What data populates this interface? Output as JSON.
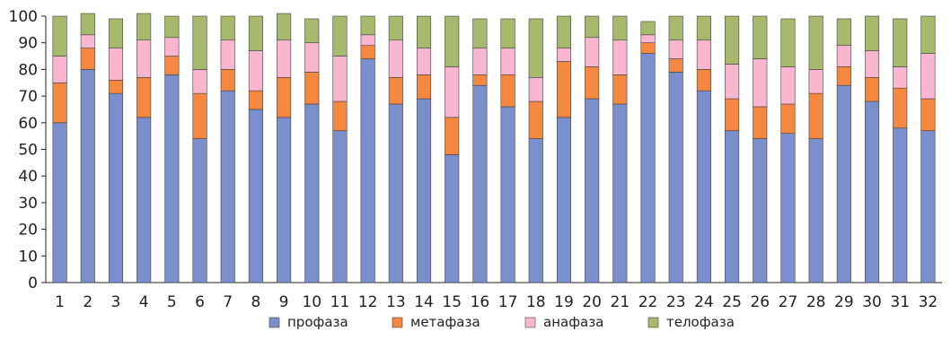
{
  "chart_data": {
    "type": "bar",
    "stacked": true,
    "title": "",
    "xlabel": "",
    "ylabel": "",
    "ylim": [
      0,
      100
    ],
    "yticks": [
      0,
      10,
      20,
      30,
      40,
      50,
      60,
      70,
      80,
      90,
      100
    ],
    "grid": false,
    "legend_position": "bottom",
    "categories": [
      "1",
      "2",
      "3",
      "4",
      "5",
      "6",
      "7",
      "8",
      "9",
      "10",
      "11",
      "12",
      "13",
      "14",
      "15",
      "16",
      "17",
      "18",
      "19",
      "20",
      "21",
      "22",
      "23",
      "24",
      "25",
      "26",
      "27",
      "28",
      "29",
      "30",
      "31",
      "32"
    ],
    "series": [
      {
        "name": "профаза",
        "color": "#7b8fcc",
        "values": [
          60,
          80,
          71,
          62,
          78,
          54,
          72,
          65,
          62,
          67,
          57,
          84,
          67,
          69,
          48,
          74,
          66,
          54,
          62,
          69,
          67,
          86,
          79,
          72,
          57,
          54,
          56,
          54,
          74,
          68,
          58,
          57
        ]
      },
      {
        "name": "метафаза",
        "color": "#f58840",
        "values": [
          15,
          8,
          5,
          15,
          7,
          17,
          8,
          7,
          15,
          12,
          11,
          5,
          10,
          9,
          14,
          4,
          12,
          14,
          21,
          12,
          11,
          4,
          5,
          8,
          12,
          12,
          11,
          17,
          7,
          9,
          15,
          12
        ]
      },
      {
        "name": "анафаза",
        "color": "#f9b6d0",
        "values": [
          10,
          5,
          12,
          14,
          7,
          9,
          11,
          15,
          14,
          11,
          17,
          4,
          14,
          10,
          19,
          10,
          10,
          9,
          5,
          11,
          13,
          3,
          7,
          11,
          13,
          18,
          14,
          9,
          8,
          10,
          8,
          17
        ]
      },
      {
        "name": "телофаза",
        "color": "#a6b96c",
        "values": [
          15,
          8,
          11,
          10,
          8,
          20,
          9,
          13,
          10,
          9,
          15,
          7,
          9,
          12,
          19,
          11,
          11,
          22,
          12,
          8,
          9,
          5,
          9,
          9,
          18,
          16,
          18,
          20,
          10,
          13,
          18,
          14
        ]
      }
    ]
  }
}
